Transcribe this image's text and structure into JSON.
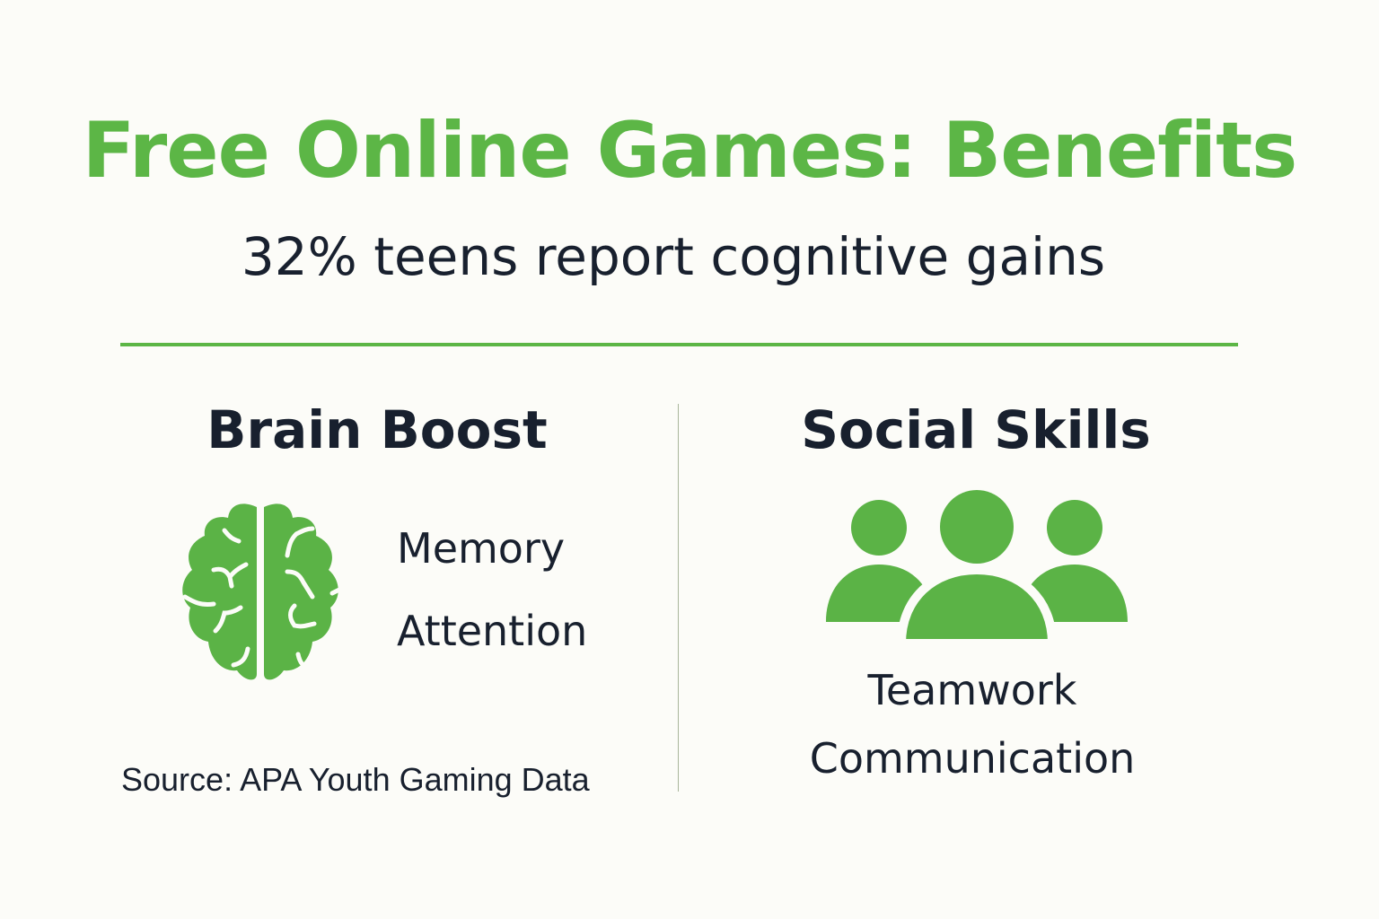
{
  "title": "Free Online Games: Benefits",
  "subtitle": "32% teens report cognitive gains",
  "colors": {
    "accent": "#5cb646",
    "text": "#18202e",
    "background": "#fcfcf8"
  },
  "left": {
    "heading": "Brain Boost",
    "icon": "brain-icon",
    "items": [
      "Memory",
      "Attention"
    ],
    "source": "Source: APA Youth Gaming Data"
  },
  "right": {
    "heading": "Social Skills",
    "icon": "people-group-icon",
    "items": [
      "Teamwork",
      "Communication"
    ]
  }
}
